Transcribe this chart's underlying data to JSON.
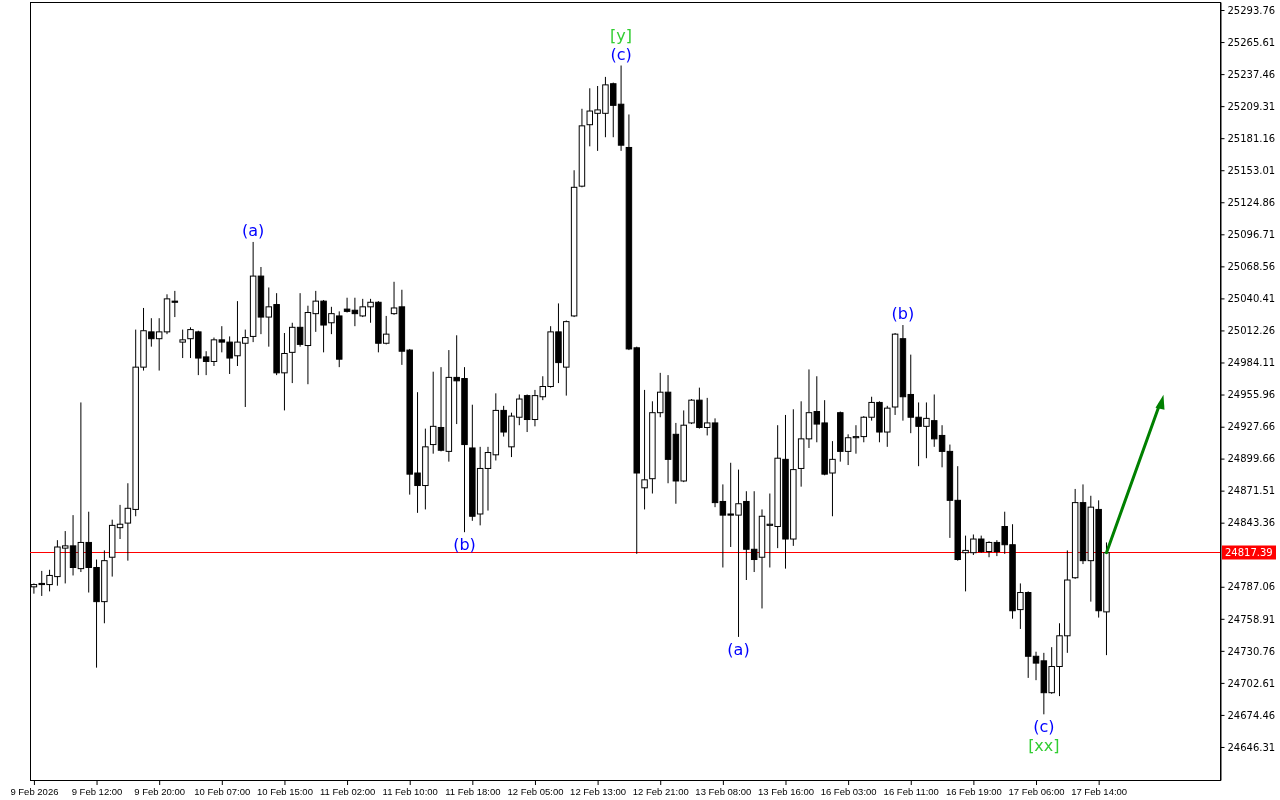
{
  "chart_data": {
    "type": "candlestick",
    "categories": [
      "9 Feb 2026",
      null,
      null,
      null,
      null,
      null,
      null,
      null,
      "9 Feb 12:00",
      null,
      null,
      null,
      null,
      null,
      null,
      null,
      "9 Feb 20:00",
      null,
      null,
      null,
      null,
      null,
      null,
      null,
      "10 Feb 07:00",
      null,
      null,
      null,
      null,
      null,
      null,
      null,
      "10 Feb 15:00",
      null,
      null,
      null,
      null,
      null,
      null,
      null,
      "11 Feb 02:00",
      null,
      null,
      null,
      null,
      null,
      null,
      null,
      "11 Feb 10:00",
      null,
      null,
      null,
      null,
      null,
      null,
      null,
      "11 Feb 18:00",
      null,
      null,
      null,
      null,
      null,
      null,
      null,
      "12 Feb 05:00",
      null,
      null,
      null,
      null,
      null,
      null,
      null,
      "12 Feb 13:00",
      null,
      null,
      null,
      null,
      null,
      null,
      null,
      "12 Feb 21:00",
      null,
      null,
      null,
      null,
      null,
      null,
      null,
      "13 Feb 08:00",
      null,
      null,
      null,
      null,
      null,
      null,
      null,
      "13 Feb 16:00",
      null,
      null,
      null,
      null,
      null,
      null,
      null,
      "16 Feb 03:00",
      null,
      null,
      null,
      null,
      null,
      null,
      null,
      "16 Feb 11:00",
      null,
      null,
      null,
      null,
      null,
      null,
      null,
      "16 Feb 19:00",
      null,
      null,
      null,
      null,
      null,
      null,
      null,
      "17 Feb 06:00",
      null,
      null,
      null,
      null,
      null,
      null,
      null,
      "17 Feb 14:00",
      null,
      null,
      null,
      null,
      null,
      null,
      null,
      null,
      null,
      null,
      null,
      null,
      null,
      null,
      null
    ],
    "ohlc": [
      [
        24787,
        24790,
        24781,
        24789
      ],
      [
        24790,
        24801,
        24779,
        24789
      ],
      [
        24789,
        24802,
        24783,
        24797
      ],
      [
        24796,
        24828,
        24788,
        24822
      ],
      [
        24821,
        24836,
        24790,
        24823
      ],
      [
        24823,
        24850,
        24797,
        24804
      ],
      [
        24803,
        24949,
        24800,
        24826
      ],
      [
        24826,
        24853,
        24782,
        24804
      ],
      [
        24804,
        24811,
        24716,
        24774
      ],
      [
        24774,
        24819,
        24755,
        24810
      ],
      [
        24813,
        24846,
        24796,
        24841
      ],
      [
        24839,
        24859,
        24829,
        24842
      ],
      [
        24843,
        24878,
        24810,
        24856
      ],
      [
        24855,
        25013,
        24849,
        24980
      ],
      [
        24980,
        25032,
        24977,
        25012
      ],
      [
        25011,
        25023,
        24998,
        25005
      ],
      [
        25005,
        25023,
        24977,
        25011
      ],
      [
        25011,
        25044,
        25009,
        25040
      ],
      [
        25038,
        25047,
        25024,
        25037
      ],
      [
        25002,
        25013,
        24988,
        25004
      ],
      [
        25005,
        25015,
        24988,
        25013
      ],
      [
        25011,
        25012,
        24973,
        24988
      ],
      [
        24989,
        24994,
        24973,
        24985
      ],
      [
        24985,
        25006,
        24981,
        25004
      ],
      [
        25004,
        25016,
        24993,
        25002
      ],
      [
        25002,
        25007,
        24974,
        24988
      ],
      [
        24990,
        25038,
        24981,
        25002
      ],
      [
        25001,
        25013,
        24945,
        25006
      ],
      [
        25007,
        25090,
        25002,
        25060
      ],
      [
        25060,
        25068,
        25009,
        25024
      ],
      [
        25024,
        25050,
        24998,
        25033
      ],
      [
        25035,
        25045,
        24973,
        24975
      ],
      [
        24975,
        25010,
        24942,
        24992
      ],
      [
        24993,
        25019,
        24966,
        25015
      ],
      [
        25015,
        25045,
        24998,
        25000
      ],
      [
        24999,
        25034,
        24965,
        25028
      ],
      [
        25027,
        25047,
        25011,
        25038
      ],
      [
        25038,
        25039,
        24993,
        25017
      ],
      [
        25019,
        25033,
        25009,
        25027
      ],
      [
        25025,
        25029,
        24980,
        24987
      ],
      [
        25031,
        25041,
        25028,
        25029
      ],
      [
        25030,
        25041,
        25016,
        25027
      ],
      [
        25025,
        25040,
        25024,
        25033
      ],
      [
        25033,
        25040,
        25019,
        25037
      ],
      [
        25037,
        25038,
        24993,
        25001
      ],
      [
        25001,
        25025,
        25000,
        25009
      ],
      [
        25027,
        25055,
        25026,
        25032
      ],
      [
        25033,
        25048,
        24982,
        24994
      ],
      [
        24995,
        24996,
        24868,
        24886
      ],
      [
        24887,
        24958,
        24852,
        24876
      ],
      [
        24876,
        24926,
        24855,
        24910
      ],
      [
        24912,
        24976,
        24904,
        24928
      ],
      [
        24927,
        24980,
        24906,
        24907
      ],
      [
        24906,
        24995,
        24897,
        24971
      ],
      [
        24971,
        25008,
        24930,
        24968
      ],
      [
        24970,
        24980,
        24835,
        24912
      ],
      [
        24909,
        24947,
        24845,
        24849
      ],
      [
        24851,
        24910,
        24841,
        24891
      ],
      [
        24891,
        24910,
        24854,
        24905
      ],
      [
        24903,
        24957,
        24898,
        24942
      ],
      [
        24942,
        24946,
        24919,
        24923
      ],
      [
        24910,
        24940,
        24901,
        24937
      ],
      [
        24936,
        24956,
        24929,
        24952
      ],
      [
        24955,
        24956,
        24923,
        24934
      ],
      [
        24934,
        24960,
        24928,
        24955
      ],
      [
        24954,
        24972,
        24951,
        24963
      ],
      [
        24963,
        25016,
        24962,
        25011
      ],
      [
        25011,
        25036,
        24966,
        24984
      ],
      [
        24980,
        25021,
        24955,
        25020
      ],
      [
        25025,
        25153,
        25024,
        25138
      ],
      [
        25139,
        25207,
        25138,
        25192
      ],
      [
        25193,
        25225,
        25174,
        25205
      ],
      [
        25203,
        25227,
        25170,
        25206
      ],
      [
        25203,
        25235,
        25182,
        25228
      ],
      [
        25229,
        25230,
        25182,
        25210
      ],
      [
        25211,
        25245,
        25170,
        25175
      ],
      [
        25173,
        25202,
        24995,
        24996
      ],
      [
        24997,
        24998,
        24816,
        24887
      ],
      [
        24874,
        24960,
        24855,
        24881
      ],
      [
        24882,
        24950,
        24869,
        24940
      ],
      [
        24940,
        24975,
        24936,
        24958
      ],
      [
        24958,
        24973,
        24878,
        24899
      ],
      [
        24921,
        24931,
        24860,
        24880
      ],
      [
        24880,
        24942,
        24879,
        24929
      ],
      [
        24931,
        24952,
        24930,
        24951
      ],
      [
        24951,
        24962,
        24926,
        24927
      ],
      [
        24927,
        24953,
        24920,
        24931
      ],
      [
        24931,
        24935,
        24857,
        24861
      ],
      [
        24862,
        24877,
        24804,
        24850
      ],
      [
        24851,
        24896,
        24822,
        24850
      ],
      [
        24850,
        24890,
        24743,
        24860
      ],
      [
        24862,
        24871,
        24793,
        24820
      ],
      [
        24820,
        24871,
        24800,
        24811
      ],
      [
        24813,
        24855,
        24768,
        24849
      ],
      [
        24841,
        24869,
        24804,
        24842
      ],
      [
        24840,
        24929,
        24821,
        24900
      ],
      [
        24899,
        24938,
        24803,
        24829
      ],
      [
        24829,
        24943,
        24823,
        24890
      ],
      [
        24891,
        24950,
        24875,
        24917
      ],
      [
        24917,
        24978,
        24909,
        24940
      ],
      [
        24941,
        24972,
        24914,
        24930
      ],
      [
        24931,
        24951,
        24885,
        24886
      ],
      [
        24887,
        24915,
        24849,
        24899
      ],
      [
        24940,
        24941,
        24897,
        24906
      ],
      [
        24906,
        24921,
        24894,
        24918
      ],
      [
        24918,
        24929,
        24904,
        24919
      ],
      [
        24919,
        24937,
        24914,
        24936
      ],
      [
        24936,
        24954,
        24933,
        24949
      ],
      [
        24949,
        24950,
        24914,
        24923
      ],
      [
        24923,
        24946,
        24910,
        24944
      ],
      [
        24945,
        25010,
        24938,
        25009
      ],
      [
        25005,
        25017,
        24933,
        24954
      ],
      [
        24956,
        24991,
        24922,
        24936
      ],
      [
        24936,
        24949,
        24893,
        24928
      ],
      [
        24928,
        24949,
        24900,
        24935
      ],
      [
        24933,
        24956,
        24910,
        24917
      ],
      [
        24920,
        24929,
        24892,
        24906
      ],
      [
        24906,
        24912,
        24830,
        24863
      ],
      [
        24863,
        24893,
        24810,
        24811
      ],
      [
        24817,
        24832,
        24783,
        24819
      ],
      [
        24817,
        24833,
        24815,
        24829
      ],
      [
        24829,
        24832,
        24817,
        24818
      ],
      [
        24818,
        24827,
        24813,
        24826
      ],
      [
        24826,
        24828,
        24814,
        24818
      ],
      [
        24840,
        24853,
        24816,
        24824
      ],
      [
        24824,
        24842,
        24759,
        24766
      ],
      [
        24767,
        24790,
        24750,
        24782
      ],
      [
        24782,
        24783,
        24707,
        24726
      ],
      [
        24726,
        24730,
        24705,
        24720
      ],
      [
        24722,
        24729,
        24675,
        24694
      ],
      [
        24694,
        24734,
        24693,
        24717
      ],
      [
        24717,
        24755,
        24691,
        24744
      ],
      [
        24744,
        24819,
        24729,
        24793
      ],
      [
        24795,
        24873,
        24794,
        24861
      ],
      [
        24861,
        24877,
        24807,
        24810
      ],
      [
        24810,
        24867,
        24774,
        24857
      ],
      [
        24855,
        24863,
        24760,
        24766
      ],
      [
        24765,
        24826,
        24727,
        24817
      ],
      null,
      null,
      null,
      null,
      null,
      null,
      null,
      null,
      null,
      null,
      null,
      null,
      null,
      null
    ],
    "ylim": [
      24617.3,
      25300.8
    ],
    "yticks": [
      24646.31,
      24674.46,
      24702.61,
      24730.76,
      24758.91,
      24787.06,
      24843.36,
      24871.51,
      24899.66,
      24927.66,
      24955.96,
      24984.11,
      25012.26,
      25040.41,
      25068.56,
      25096.71,
      25124.86,
      25153.01,
      25181.16,
      25209.31,
      25237.46,
      25265.61,
      25293.76
    ],
    "ref_lines": [
      {
        "axis": "y",
        "value": 24817.39,
        "label": "24817.39",
        "color": "#ff0000"
      }
    ],
    "annotations": [
      {
        "text": "(a)",
        "y": 25090
      },
      {
        "text": "(b)",
        "y": 24835
      },
      {
        "text": "(c)",
        "y": 25245
      },
      {
        "text": "[y]",
        "y": 25245
      },
      {
        "text": "(a)",
        "y": 24743
      },
      {
        "text": "(b)",
        "y": 25017
      },
      {
        "text": "(c)",
        "y": 24675
      },
      {
        "text": "[xx]",
        "y": 24675
      }
    ]
  }
}
